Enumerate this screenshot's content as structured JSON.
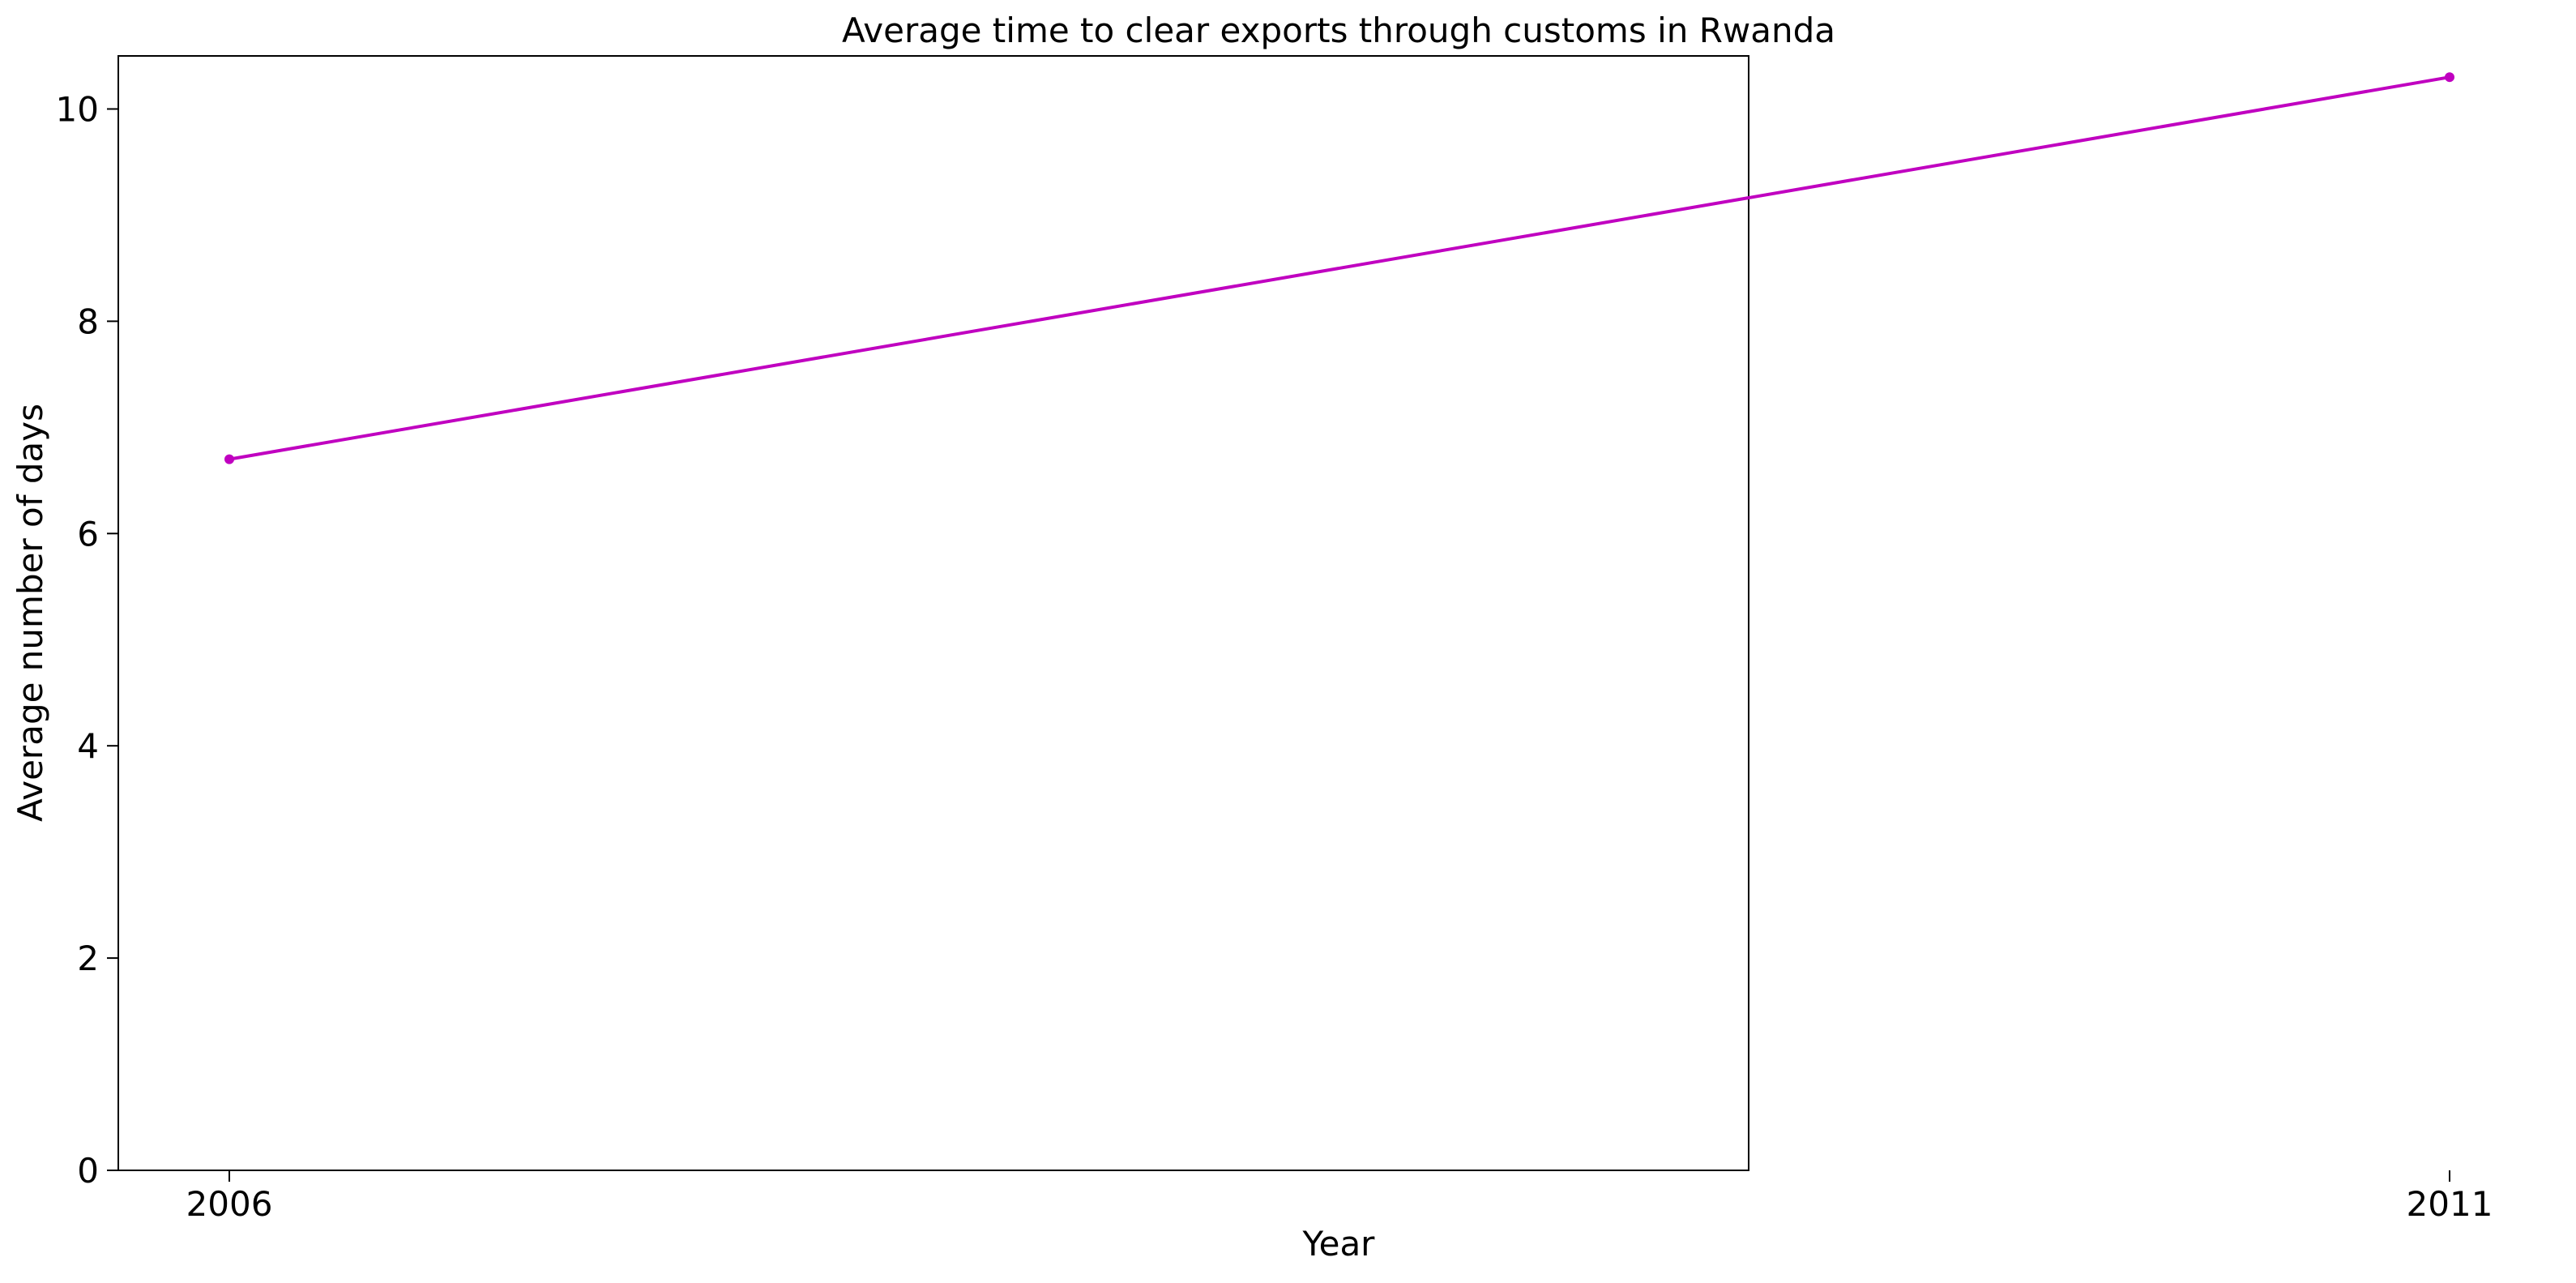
{
  "chart_data": {
    "type": "line",
    "title": "Average time to clear exports through customs in Rwanda",
    "xlabel": "Year",
    "ylabel": "Average number of days",
    "x": [
      "2006",
      "2011"
    ],
    "series": [
      {
        "name": "",
        "values": [
          6.7,
          10.3
        ],
        "color": "#c000c0",
        "marker": "circle"
      }
    ],
    "ylim": [
      0,
      10.5
    ],
    "yticks": [
      0,
      2,
      4,
      6,
      8,
      10
    ],
    "xticks": [
      "2006",
      "2011"
    ],
    "grid": false,
    "legend": "none"
  }
}
